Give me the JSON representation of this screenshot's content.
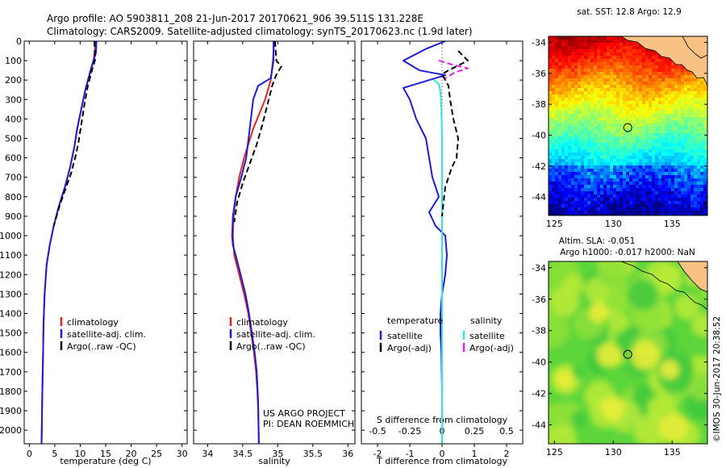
{
  "header": {
    "line1": "Argo profile: AO 5903811_208 21-Jun-2017 20170621_906 39.511S 131.228E",
    "line2": "Climatology: CARS2009. Satellite-adjusted climatology: synTS_20170623.nc (1.9d later)"
  },
  "colors": {
    "climatology": "#e8241c",
    "satellite": "#1c1cd8",
    "argo": "#000000",
    "salinity_sat": "#2ee6e6",
    "salinity_argo": "#e61ee6"
  },
  "depth_ticks": [
    "0",
    "100",
    "200",
    "300",
    "400",
    "500",
    "600",
    "700",
    "800",
    "900",
    "1000",
    "1100",
    "1200",
    "1300",
    "1400",
    "1500",
    "1600",
    "1700",
    "1800",
    "1900",
    "2000"
  ],
  "chart_data": [
    {
      "type": "line",
      "panel": "temperature",
      "xlabel": "temperature (deg C)",
      "xlim": [
        -1,
        31
      ],
      "ylim": [
        2070,
        0
      ],
      "x_ticks": [
        "0",
        "5",
        "10",
        "15",
        "20",
        "25",
        "30"
      ],
      "legend": [
        "climatology",
        "satellite-adj. clim.",
        "Argo(..raw -QC)"
      ],
      "series": [
        {
          "name": "climatology",
          "color": "#e8241c",
          "style": "solid",
          "x": [
            13.0,
            12.9,
            12.6,
            12.0,
            11.0,
            10.2,
            9.4,
            8.8,
            8.0,
            7.0,
            5.8,
            4.8,
            4.0,
            3.4,
            3.0,
            2.8,
            2.7,
            2.6,
            2.5,
            2.45,
            2.4
          ],
          "y": [
            0,
            50,
            100,
            150,
            250,
            350,
            450,
            550,
            650,
            750,
            850,
            950,
            1050,
            1150,
            1300,
            1450,
            1600,
            1750,
            1900,
            2000,
            2070
          ]
        },
        {
          "name": "satellite-adj. clim.",
          "color": "#1c1cd8",
          "style": "solid",
          "x": [
            13.2,
            13.1,
            12.5,
            11.0,
            10.2,
            9.4,
            8.8,
            8.0,
            7.0,
            5.8,
            4.8,
            4.0,
            3.4,
            3.0,
            2.8,
            2.7,
            2.6,
            2.5,
            2.45,
            2.4
          ],
          "y": [
            0,
            60,
            110,
            250,
            350,
            450,
            550,
            650,
            750,
            850,
            950,
            1050,
            1150,
            1300,
            1450,
            1600,
            1750,
            1900,
            2000,
            2070
          ]
        },
        {
          "name": "Argo(..raw -QC)",
          "color": "#000000",
          "style": "dashed",
          "x": [
            12.8,
            12.9,
            12.4,
            11.5,
            10.8,
            10.2,
            9.6,
            9.0,
            8.2,
            7.1,
            5.9,
            4.8
          ],
          "y": [
            0,
            100,
            140,
            230,
            330,
            430,
            530,
            600,
            680,
            760,
            850,
            950
          ]
        }
      ]
    },
    {
      "type": "line",
      "panel": "salinity",
      "xlabel": "salinity",
      "xlim": [
        33.8,
        36.1
      ],
      "ylim": [
        2070,
        0
      ],
      "x_ticks": [
        "34",
        "34.5",
        "35",
        "35.5",
        "36"
      ],
      "legend": [
        "climatology",
        "satellite-adj. clim.",
        "Argo(..raw -QC)"
      ],
      "annotation": [
        "US ARGO PROJECT",
        "PI: DEAN ROEMMICH"
      ],
      "series": [
        {
          "name": "climatology",
          "color": "#e8241c",
          "style": "solid",
          "x": [
            34.95,
            34.93,
            34.9,
            34.82,
            34.65,
            34.52,
            34.45,
            34.4,
            34.37,
            34.36,
            34.38,
            34.45,
            34.52,
            34.58,
            34.62,
            34.66,
            34.69,
            34.71,
            34.72,
            34.73
          ],
          "y": [
            0,
            100,
            200,
            300,
            450,
            600,
            700,
            800,
            900,
            1000,
            1100,
            1200,
            1300,
            1400,
            1500,
            1600,
            1700,
            1800,
            1900,
            2070
          ]
        },
        {
          "name": "satellite-adj. clim.",
          "color": "#1c1cd8",
          "style": "solid",
          "x": [
            34.94,
            34.94,
            34.9,
            34.72,
            34.65,
            34.6,
            34.55,
            34.48,
            34.4,
            34.36,
            34.35,
            34.36,
            34.4,
            34.47,
            34.54,
            34.59,
            34.63,
            34.67,
            34.7,
            34.72,
            34.73
          ],
          "y": [
            0,
            100,
            190,
            230,
            300,
            450,
            600,
            700,
            800,
            900,
            1000,
            1050,
            1100,
            1200,
            1300,
            1400,
            1500,
            1600,
            1700,
            1850,
            2070
          ]
        },
        {
          "name": "Argo(..raw -QC)",
          "color": "#000000",
          "style": "dashed",
          "x": [
            34.96,
            34.98,
            35.05,
            34.97,
            34.92,
            34.85,
            34.78,
            34.7,
            34.6,
            34.5,
            34.42,
            34.38
          ],
          "y": [
            0,
            100,
            130,
            180,
            230,
            330,
            430,
            530,
            630,
            730,
            830,
            930
          ]
        }
      ]
    },
    {
      "type": "line",
      "panel": "difference",
      "xlabel": "T difference from climatology",
      "x_ticks": [
        "-2",
        "-1",
        "0",
        "1",
        "2"
      ],
      "xlim": [
        -2.5,
        2.5
      ],
      "secondary_xlabel": "S difference from climatology",
      "secondary_x_ticks": [
        "-0.5",
        "-0.25",
        "0",
        "0.25",
        "0.5"
      ],
      "ylim": [
        2070,
        0
      ],
      "legend": {
        "temperature": [
          "satellite",
          "Argo(-adj)"
        ],
        "salinity": [
          "satellite",
          "Argo(-adj)"
        ]
      },
      "legend_headers": [
        "temperature",
        "salinity"
      ],
      "series": [
        {
          "name": "satellite",
          "group": "temperature",
          "color": "#1c1cd8",
          "style": "solid",
          "x": [
            0.1,
            -0.5,
            -1.2,
            -0.7,
            0.1,
            -1.2,
            -1.0,
            -0.8,
            -0.5,
            -0.4,
            -0.3,
            -0.1,
            -0.4,
            -0.2,
            0.1,
            0.15,
            0.1,
            0.0,
            -0.05,
            -0.05,
            -0.02,
            0.0,
            0.0,
            0.0
          ],
          "y": [
            0,
            40,
            100,
            150,
            175,
            240,
            300,
            400,
            500,
            600,
            700,
            800,
            880,
            950,
            1000,
            1100,
            1200,
            1300,
            1400,
            1500,
            1600,
            1800,
            2000,
            2070
          ]
        },
        {
          "name": "satellite",
          "group": "salinity",
          "color": "#2ee6e6",
          "style": "solid",
          "x": [
            -0.25,
            -0.1,
            -0.05,
            -0.02,
            0.0,
            0.0,
            0.0,
            0.0,
            0.0
          ],
          "y": [
            200,
            220,
            260,
            350,
            500,
            700,
            1000,
            1500,
            2070
          ]
        },
        {
          "name": "Argo(-adj)",
          "group": "temperature",
          "color": "#000000",
          "style": "dashed",
          "x": [
            0.5,
            0.8,
            0.2,
            0.0,
            0.2,
            0.25,
            0.35,
            0.5,
            0.45,
            0.3,
            0.2,
            0.1,
            0.05,
            0.0
          ],
          "y": [
            50,
            100,
            150,
            170,
            230,
            300,
            400,
            500,
            600,
            650,
            700,
            750,
            820,
            900
          ]
        },
        {
          "name": "Argo(-adj)",
          "group": "salinity",
          "color": "#e61ee6",
          "style": "dashed",
          "x": [
            -0.1,
            0.3,
            0.8,
            0.4,
            0.1
          ],
          "y": [
            100,
            120,
            140,
            160,
            190
          ]
        }
      ]
    }
  ],
  "map_sst": {
    "title": "sat. SST: 12.8 Argo: 12.9",
    "y_ticks": [
      "-34",
      "-36",
      "-38",
      "-40",
      "-42",
      "-44"
    ],
    "x_ticks": [
      "125",
      "130",
      "135"
    ],
    "xlim": [
      124.5,
      138
    ],
    "ylim": [
      -45.2,
      -33.6
    ],
    "argo_marker": [
      131.228,
      -39.511
    ]
  },
  "map_sla": {
    "title_line1": "Altim. SLA: -0.051",
    "title_line2": "Argo h1000: -0.017 h2000: NaN",
    "y_ticks": [
      "-34",
      "-36",
      "-38",
      "-40",
      "-42",
      "-44"
    ],
    "x_ticks": [
      "125",
      "130",
      "135"
    ],
    "xlim": [
      124.5,
      138
    ],
    "ylim": [
      -45.2,
      -33.6
    ],
    "argo_marker": [
      131.228,
      -39.511
    ]
  },
  "credit": "©IMOS 30-Jun-2017 20:38:52"
}
